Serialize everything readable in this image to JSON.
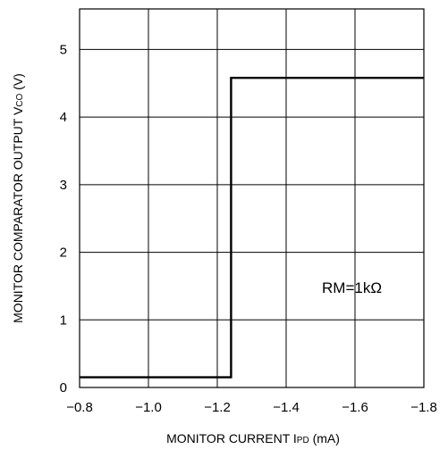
{
  "chart_data": {
    "type": "line",
    "x": [
      -0.8,
      -1.24,
      -1.24,
      -1.8
    ],
    "y": [
      0.15,
      0.15,
      4.58,
      4.58
    ],
    "xlim": [
      -0.8,
      -1.8
    ],
    "ylim": [
      0,
      5.6
    ],
    "x_ticks": [
      -0.8,
      -1.0,
      -1.2,
      -1.4,
      -1.6,
      -1.8
    ],
    "x_tick_labels": [
      "−0.8",
      "−1.0",
      "−1.2",
      "−1.4",
      "−1.6",
      "−1.8"
    ],
    "y_ticks": [
      0,
      1,
      2,
      3,
      4,
      5
    ],
    "y_tick_labels": [
      "0",
      "1",
      "2",
      "3",
      "4",
      "5"
    ],
    "grid": true,
    "xlabel_main": "MONITOR CURRENT I",
    "xlabel_sub": "PD",
    "xlabel_unit": " (mA)",
    "ylabel_main": "MONITOR COMPARATOR OUTPUT  V",
    "ylabel_sub": "CO",
    "ylabel_unit": " (V)",
    "annotation": "RM=1kΩ",
    "line_color": "#000000"
  }
}
